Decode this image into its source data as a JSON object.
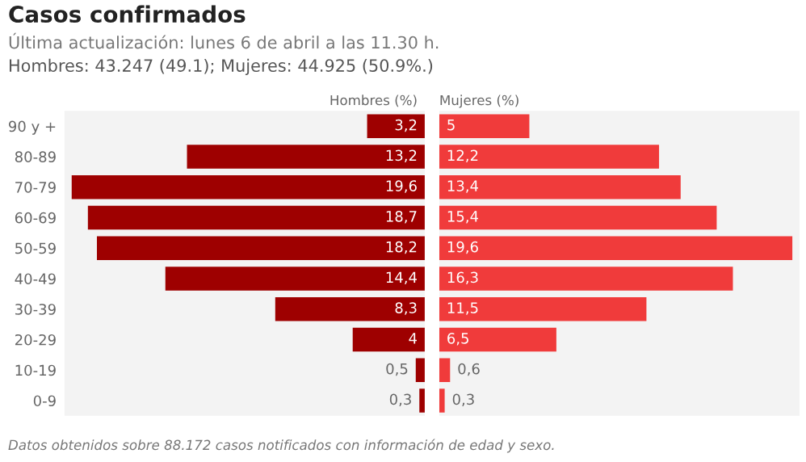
{
  "chart_data": [
    {
      "type": "bar",
      "orientation": "horizontal",
      "title": "Casos confirmados",
      "subtitle": "Última actualización: lunes 6 de abril a las 11.30 h.",
      "xlabel": "Hombres (%)",
      "annotations": [
        "Hombres: 43.247 (49.1); Mujeres: 44.925 (50.9%.)",
        "Datos obtenidos sobre 88.172 casos notificados con información de edad y sexo."
      ],
      "categories": [
        "90 y +",
        "80-89",
        "70-79",
        "60-69",
        "50-59",
        "40-49",
        "30-39",
        "20-29",
        "10-19",
        "0-9"
      ],
      "xlim": [
        20,
        0
      ],
      "tick_labels": "y",
      "grid": false,
      "legend": false,
      "series": [
        {
          "color": "#9e0000",
          "values": [
            3.2,
            13.2,
            19.6,
            18.7,
            18.2,
            14.4,
            8.3,
            4,
            0.5,
            0.3
          ],
          "value_labels": [
            "3,2",
            "13,2",
            "19,6",
            "18,7",
            "18,2",
            "14,4",
            "8,3",
            "4",
            "0,5",
            "0,3"
          ]
        }
      ]
    },
    {
      "type": "bar",
      "orientation": "horizontal",
      "xlabel": "Mujeres (%)",
      "categories": [
        null,
        null,
        null,
        null,
        null,
        null,
        null,
        null,
        null,
        null
      ],
      "xlim": [
        0,
        20
      ],
      "grid": false,
      "legend": false,
      "series": [
        {
          "color": "#f03b3b",
          "values": [
            5,
            12.2,
            13.4,
            15.4,
            19.6,
            16.3,
            11.5,
            6.5,
            0.6,
            0.3
          ],
          "value_labels": [
            "5",
            "12,2",
            "13,4",
            "15,4",
            "19,6",
            "16,3",
            "11,5",
            "6,5",
            "0,6",
            "0,3"
          ]
        }
      ]
    }
  ]
}
